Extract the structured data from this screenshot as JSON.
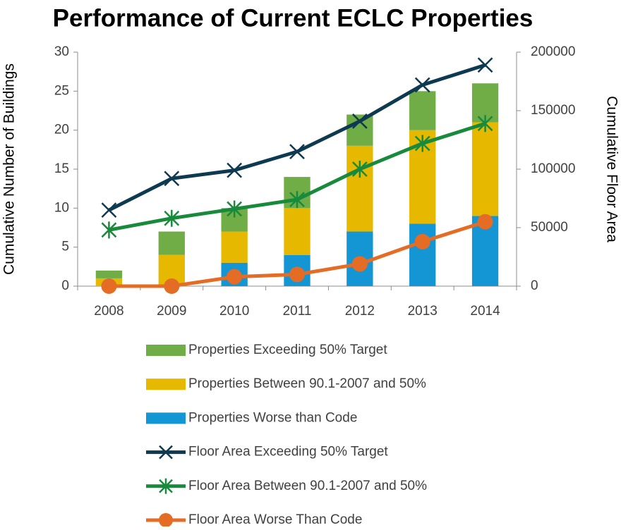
{
  "chart_data": {
    "type": "combo",
    "title": "Performance of Current ECLC Properties",
    "y_label": "Cumulative Number of Buildings",
    "y2_label": "Cumulative Floor Area",
    "categories": [
      "2008",
      "2009",
      "2010",
      "2011",
      "2012",
      "2013",
      "2014"
    ],
    "ylim": [
      0,
      30
    ],
    "yticks": [
      0,
      5,
      10,
      15,
      20,
      25,
      30
    ],
    "y2lim": [
      0,
      200000
    ],
    "y2ticks": [
      0,
      50000,
      100000,
      150000,
      200000
    ],
    "stacked": true,
    "series": [
      {
        "name": "Properties Exceeding 50% Target",
        "type": "bar",
        "color": "#70ad47",
        "values": [
          1,
          3,
          3,
          4,
          4,
          5,
          5
        ]
      },
      {
        "name": "Properties Between 90.1-2007 and 50%",
        "type": "bar",
        "color": "#e6b800",
        "values": [
          1,
          4,
          4,
          6,
          11,
          12,
          12
        ]
      },
      {
        "name": "Properties Worse than Code",
        "type": "bar",
        "color": "#1496d4",
        "values": [
          0,
          0,
          3,
          4,
          7,
          8,
          9
        ]
      },
      {
        "name": "Floor Area Exceeding 50% Target",
        "type": "line",
        "axis": "y2",
        "marker": "x",
        "color": "#0d3a50",
        "values": [
          65000,
          92000,
          99000,
          115000,
          141000,
          172000,
          189000
        ]
      },
      {
        "name": "Floor Area Between 90.1-2007 and 50%",
        "type": "line",
        "axis": "y2",
        "marker": "asterisk",
        "color": "#178a3c",
        "values": [
          48000,
          58000,
          66000,
          74000,
          100000,
          122000,
          139000
        ]
      },
      {
        "name": "Floor Area Worse Than Code",
        "type": "line",
        "axis": "y2",
        "marker": "circle",
        "color": "#e46c24",
        "values": [
          0,
          0,
          8000,
          10000,
          19000,
          38000,
          55000
        ]
      }
    ]
  }
}
